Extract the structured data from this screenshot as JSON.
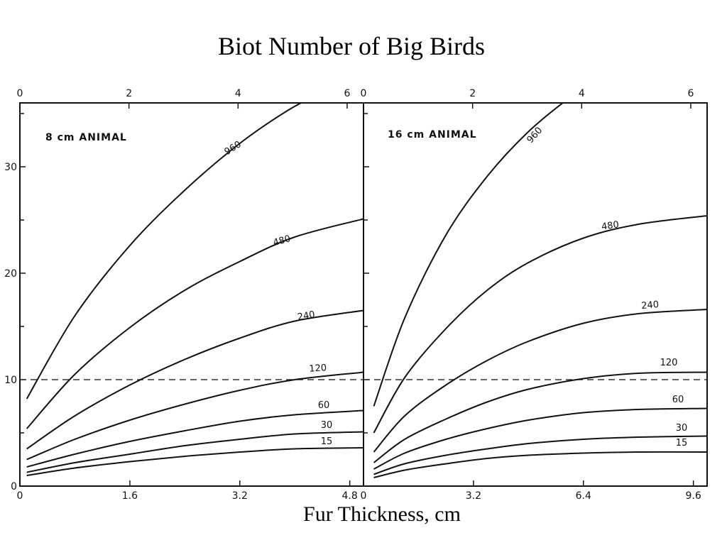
{
  "page": {
    "title": "Biot Number of Big Birds",
    "x_caption": "Fur Thickness, cm"
  },
  "chart_data": [
    {
      "type": "line",
      "panel_label": "8 cm ANIMAL",
      "title": "",
      "xlabel": "Fur Thickness, cm",
      "ylabel": "",
      "x_bottom_ticks": [
        "0",
        "1.6",
        "3.2",
        "4.8"
      ],
      "x_top_ticks": [
        "0",
        "2",
        "4",
        "6"
      ],
      "y_ticks": [
        "0",
        "10",
        "20",
        "30"
      ],
      "xlim": [
        0,
        5.0
      ],
      "ylim": [
        0,
        36
      ],
      "grid": false,
      "reference_line": {
        "y": 10,
        "style": "dashed"
      },
      "series": [
        {
          "name": "960",
          "x": [
            0.1,
            0.8,
            1.6,
            2.4,
            3.2,
            3.9,
            4.4
          ],
          "y": [
            8.2,
            16.0,
            22.6,
            27.8,
            32.2,
            35.3,
            37.0
          ]
        },
        {
          "name": "480",
          "x": [
            0.1,
            0.8,
            1.6,
            2.4,
            3.2,
            4.0,
            5.0
          ],
          "y": [
            5.4,
            10.5,
            14.9,
            18.4,
            21.1,
            23.4,
            25.1
          ]
        },
        {
          "name": "240",
          "x": [
            0.1,
            0.8,
            1.6,
            2.4,
            3.2,
            4.0,
            5.0
          ],
          "y": [
            3.5,
            6.6,
            9.5,
            11.9,
            13.9,
            15.5,
            16.5
          ]
        },
        {
          "name": "120",
          "x": [
            0.1,
            0.8,
            1.6,
            2.4,
            3.2,
            4.0,
            5.0
          ],
          "y": [
            2.5,
            4.4,
            6.2,
            7.7,
            9.0,
            10.0,
            10.7
          ]
        },
        {
          "name": "60",
          "x": [
            0.1,
            0.8,
            1.6,
            2.4,
            3.2,
            4.0,
            5.0
          ],
          "y": [
            1.8,
            3.0,
            4.2,
            5.2,
            6.1,
            6.7,
            7.1
          ]
        },
        {
          "name": "30",
          "x": [
            0.1,
            0.8,
            1.6,
            2.4,
            3.2,
            4.0,
            5.0
          ],
          "y": [
            1.3,
            2.2,
            3.0,
            3.8,
            4.4,
            4.9,
            5.1
          ]
        },
        {
          "name": "15",
          "x": [
            0.1,
            0.8,
            1.6,
            2.4,
            3.2,
            4.0,
            5.0
          ],
          "y": [
            1.0,
            1.7,
            2.3,
            2.8,
            3.2,
            3.5,
            3.6
          ]
        }
      ]
    },
    {
      "type": "line",
      "panel_label": "16 cm ANIMAL",
      "title": "",
      "xlabel": "Fur Thickness, cm",
      "ylabel": "",
      "x_bottom_ticks": [
        "0",
        "3.2",
        "6.4",
        "9.6"
      ],
      "x_top_ticks": [
        "0",
        "2",
        "4",
        "6"
      ],
      "y_ticks": [
        "0",
        "10",
        "20",
        "30"
      ],
      "xlim": [
        0,
        10.0
      ],
      "ylim": [
        0,
        36
      ],
      "grid": false,
      "reference_line": {
        "y": 10,
        "style": "dashed"
      },
      "series": [
        {
          "name": "960",
          "x": [
            0.3,
            1.2,
            2.4,
            3.6,
            4.8,
            6.0,
            6.5
          ],
          "y": [
            7.5,
            15.8,
            23.6,
            29.1,
            33.3,
            36.5,
            37.5
          ]
        },
        {
          "name": "480",
          "x": [
            0.3,
            1.2,
            2.4,
            3.6,
            4.8,
            6.4,
            8.0,
            10.0
          ],
          "y": [
            5.0,
            10.2,
            14.8,
            18.4,
            21.0,
            23.3,
            24.6,
            25.4
          ]
        },
        {
          "name": "240",
          "x": [
            0.3,
            1.2,
            2.4,
            3.6,
            4.8,
            6.4,
            8.0,
            10.0
          ],
          "y": [
            3.2,
            6.6,
            9.5,
            11.8,
            13.6,
            15.3,
            16.2,
            16.6
          ]
        },
        {
          "name": "120",
          "x": [
            0.3,
            1.2,
            2.4,
            3.6,
            4.8,
            6.4,
            8.0,
            10.0
          ],
          "y": [
            2.2,
            4.4,
            6.3,
            7.9,
            9.1,
            10.1,
            10.6,
            10.7
          ]
        },
        {
          "name": "60",
          "x": [
            0.3,
            1.2,
            2.4,
            3.6,
            4.8,
            6.4,
            8.0,
            10.0
          ],
          "y": [
            1.6,
            3.1,
            4.4,
            5.4,
            6.2,
            6.9,
            7.2,
            7.3
          ]
        },
        {
          "name": "30",
          "x": [
            0.3,
            1.2,
            2.4,
            3.6,
            4.8,
            6.4,
            8.0,
            10.0
          ],
          "y": [
            1.1,
            2.1,
            2.9,
            3.5,
            4.0,
            4.4,
            4.6,
            4.7
          ]
        },
        {
          "name": "15",
          "x": [
            0.3,
            1.2,
            2.4,
            3.6,
            4.8,
            6.4,
            8.0,
            10.0
          ],
          "y": [
            0.8,
            1.5,
            2.1,
            2.6,
            2.9,
            3.1,
            3.2,
            3.2
          ]
        }
      ]
    }
  ]
}
